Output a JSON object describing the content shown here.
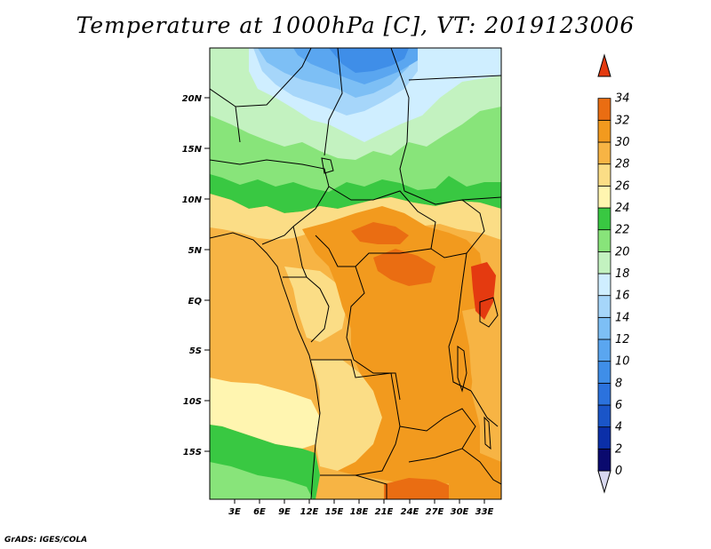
{
  "title": "Temperature at 1000hPa [C], VT: 2019123006",
  "credit": "GrADS: IGES/COLA",
  "map": {
    "lat_labels": [
      "20N",
      "15N",
      "10N",
      "5N",
      "EQ",
      "5S",
      "10S",
      "15S"
    ],
    "lon_labels": [
      "3E",
      "6E",
      "9E",
      "12E",
      "15E",
      "18E",
      "21E",
      "24E",
      "27E",
      "30E",
      "33E"
    ]
  },
  "colorbar": {
    "labels": [
      "0",
      "2",
      "4",
      "6",
      "8",
      "10",
      "12",
      "14",
      "16",
      "18",
      "20",
      "22",
      "24",
      "26",
      "28",
      "30",
      "32",
      "34"
    ],
    "colors": [
      "#0a0a6e",
      "#0b2fa8",
      "#1a55c8",
      "#2b72dd",
      "#3f8ee8",
      "#5aa6f0",
      "#7dbff5",
      "#a6d6fa",
      "#cfeeff",
      "#c3f2c0",
      "#88e47a",
      "#39c842",
      "#fff5b0",
      "#fbdd86",
      "#f7b444",
      "#f29a1e",
      "#ea6d12",
      "#e43a10"
    ]
  }
}
